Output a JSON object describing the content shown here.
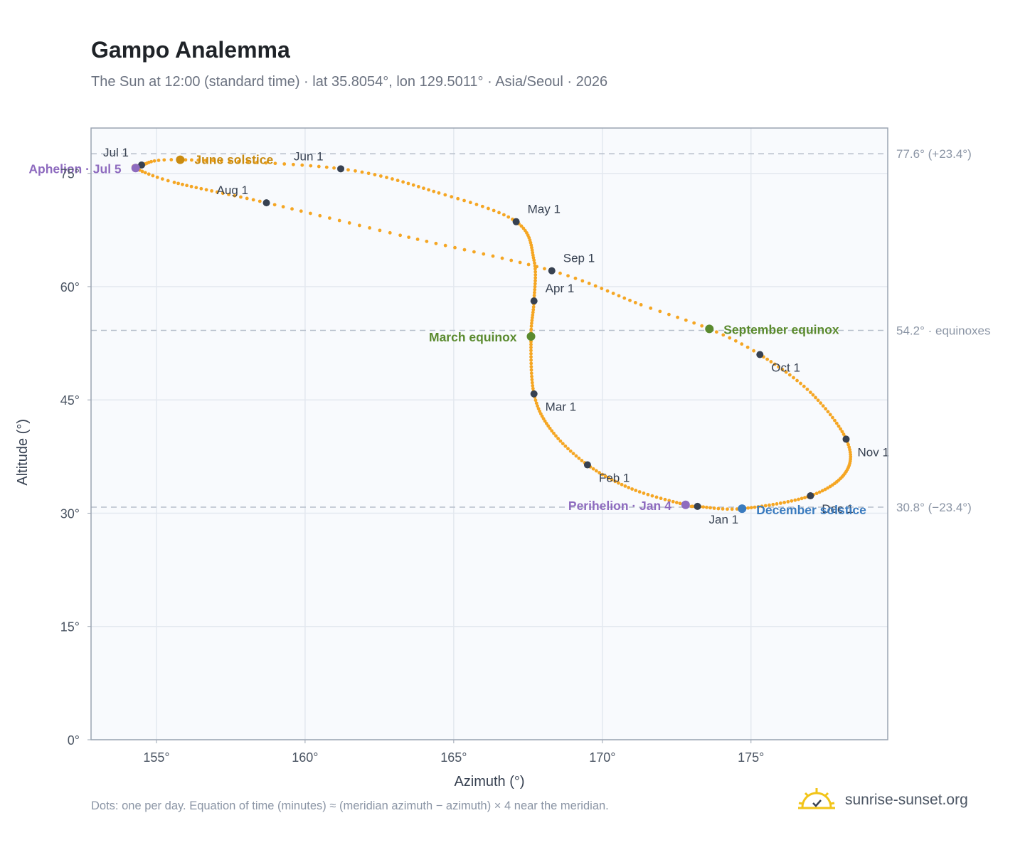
{
  "header": {
    "title": "Gampo Analemma",
    "subtitle": "The Sun at 12:00 (standard time) · lat 35.8054°, lon 129.5011° · Asia/Seoul · 2026"
  },
  "footer": {
    "note": "Dots: one per day. Equation of time (minutes) ≈ (meridian azimuth − azimuth) × 4 near the meridian.",
    "brand": "sunrise-sunset.org"
  },
  "colors": {
    "path": "#f5a623",
    "marker": "#374151",
    "solstice_june": "#c98b10",
    "equinox": "#5a8a2e",
    "december_solstice": "#3a7bbf",
    "apsis": "#8e6bbf",
    "reference_line": "#b8c0cc",
    "plot_bg": "#f8fafd",
    "grid": "#e3e8ef"
  },
  "chart_data": {
    "type": "scatter",
    "xlabel": "Azimuth (°)",
    "ylabel": "Altitude (°)",
    "xlim": [
      152.8,
      179.6
    ],
    "ylim": [
      0,
      81
    ],
    "grid": true,
    "x_ticks": [
      155,
      160,
      165,
      170,
      175
    ],
    "x_tick_labels": [
      "155°",
      "160°",
      "165°",
      "170°",
      "175°"
    ],
    "y_ticks": [
      0,
      15,
      30,
      45,
      60,
      75
    ],
    "y_tick_labels": [
      "0°",
      "15°",
      "30°",
      "45°",
      "60°",
      "75°"
    ],
    "series": [
      {
        "points": [
          {
            "date": "Jan 1",
            "az": 173.2,
            "alt": 30.9
          },
          {
            "date": "Jan 4",
            "az": 172.8,
            "alt": 31.1
          },
          {
            "date": "Jan 18",
            "az": 171.0,
            "alt": 33.2
          },
          {
            "date": "Feb 1",
            "az": 169.5,
            "alt": 36.4
          },
          {
            "date": "Feb 15",
            "az": 168.3,
            "alt": 40.9
          },
          {
            "date": "Mar 1",
            "az": 167.7,
            "alt": 45.8
          },
          {
            "date": "Mar 20",
            "az": 167.6,
            "alt": 53.4
          },
          {
            "date": "Apr 1",
            "az": 167.7,
            "alt": 58.1
          },
          {
            "date": "Apr 15",
            "az": 167.7,
            "alt": 63.5
          },
          {
            "date": "May 1",
            "az": 167.1,
            "alt": 68.6
          },
          {
            "date": "May 15",
            "az": 164.5,
            "alt": 72.4
          },
          {
            "date": "Jun 1",
            "az": 161.2,
            "alt": 75.6
          },
          {
            "date": "Jun 21",
            "az": 155.8,
            "alt": 76.8
          },
          {
            "date": "Jul 1",
            "az": 154.5,
            "alt": 76.1
          },
          {
            "date": "Jul 5",
            "az": 154.3,
            "alt": 75.7
          },
          {
            "date": "Jul 15",
            "az": 155.6,
            "alt": 73.8
          },
          {
            "date": "Aug 1",
            "az": 158.7,
            "alt": 71.1
          },
          {
            "date": "Aug 15",
            "az": 163.2,
            "alt": 66.8
          },
          {
            "date": "Sep 1",
            "az": 168.3,
            "alt": 62.1
          },
          {
            "date": "Sep 15",
            "az": 171.3,
            "alt": 57.6
          },
          {
            "date": "Sep 23",
            "az": 173.6,
            "alt": 54.4
          },
          {
            "date": "Oct 1",
            "az": 175.3,
            "alt": 51.0
          },
          {
            "date": "Oct 15",
            "az": 177.0,
            "alt": 46.0
          },
          {
            "date": "Nov 1",
            "az": 178.2,
            "alt": 39.8
          },
          {
            "date": "Nov 15",
            "az": 178.2,
            "alt": 35.5
          },
          {
            "date": "Dec 1",
            "az": 177.0,
            "alt": 32.3
          },
          {
            "date": "Dec 21",
            "az": 174.7,
            "alt": 30.6
          }
        ]
      }
    ],
    "month_markers": [
      {
        "label": "Jan 1",
        "az": 173.2,
        "alt": 30.9
      },
      {
        "label": "Feb 1",
        "az": 169.5,
        "alt": 36.4
      },
      {
        "label": "Mar 1",
        "az": 167.7,
        "alt": 45.8
      },
      {
        "label": "Apr 1",
        "az": 167.7,
        "alt": 58.1
      },
      {
        "label": "May 1",
        "az": 167.1,
        "alt": 68.6
      },
      {
        "label": "Jun 1",
        "az": 161.2,
        "alt": 75.6
      },
      {
        "label": "Jul 1",
        "az": 154.5,
        "alt": 76.1
      },
      {
        "label": "Aug 1",
        "az": 158.7,
        "alt": 71.1
      },
      {
        "label": "Sep 1",
        "az": 168.3,
        "alt": 62.1
      },
      {
        "label": "Oct 1",
        "az": 175.3,
        "alt": 51.0
      },
      {
        "label": "Nov 1",
        "az": 178.2,
        "alt": 39.8
      },
      {
        "label": "Dec 1",
        "az": 177.0,
        "alt": 32.3
      }
    ],
    "events": [
      {
        "label": "June solstice",
        "az": 155.8,
        "alt": 76.8,
        "color": "#c98b10"
      },
      {
        "label": "March equinox",
        "az": 167.6,
        "alt": 53.4,
        "color": "#5a8a2e"
      },
      {
        "label": "September equinox",
        "az": 173.6,
        "alt": 54.4,
        "color": "#5a8a2e"
      },
      {
        "label": "December solstice",
        "az": 174.7,
        "alt": 30.6,
        "color": "#3a7bbf"
      },
      {
        "label": "Aphelion · Jul 5",
        "az": 154.3,
        "alt": 75.7,
        "color": "#8e6bbf"
      },
      {
        "label": "Perihelion · Jan 4",
        "az": 172.8,
        "alt": 31.1,
        "color": "#8e6bbf"
      }
    ],
    "reference_lines": [
      {
        "alt": 77.6,
        "label": "77.6° (+23.4°)"
      },
      {
        "alt": 54.2,
        "label": "54.2° · equinoxes"
      },
      {
        "alt": 30.8,
        "label": "30.8° (−23.4°)"
      }
    ]
  }
}
